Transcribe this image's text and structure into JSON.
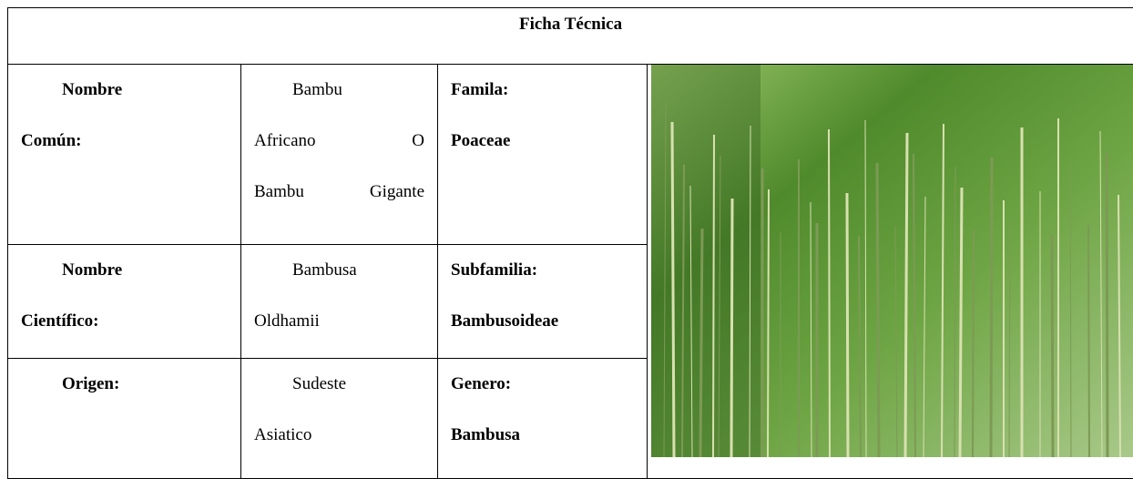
{
  "table": {
    "title": "Ficha Técnica",
    "rows": [
      [
        {
          "lines": [
            "Nombre",
            "Común:"
          ]
        },
        {
          "lines": [
            "Bambu",
            "Africano O",
            "Bambu Gigante"
          ]
        },
        {
          "lines": [
            "Famila:",
            "Poaceae"
          ]
        }
      ],
      [
        {
          "lines": [
            "Nombre",
            "Científico:"
          ]
        },
        {
          "lines": [
            "Bambusa",
            "Oldhamii"
          ]
        },
        {
          "lines": [
            "Subfamilia:",
            "Bambusoideae"
          ]
        }
      ],
      [
        {
          "lines": [
            "Origen:"
          ]
        },
        {
          "lines": [
            "Sudeste",
            "Asiatico"
          ]
        },
        {
          "lines": [
            "Genero:",
            "Bambusa"
          ]
        }
      ]
    ]
  }
}
